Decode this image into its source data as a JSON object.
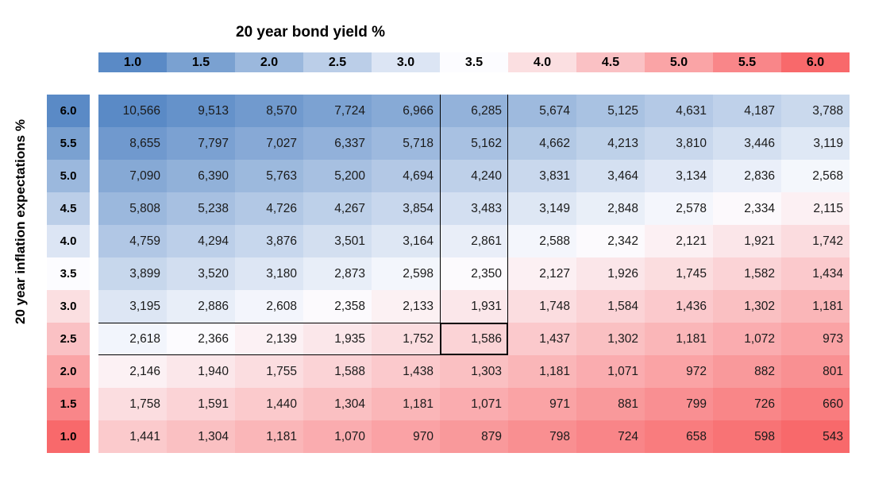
{
  "title": "20 year bond yield %",
  "y_axis_label": "20 year inflation expectations %",
  "chart_data": {
    "type": "heatmap",
    "title": "20 year bond yield %",
    "xlabel": "20 year bond yield %",
    "ylabel": "20 year inflation expectations %",
    "columns": [
      "1.0",
      "1.5",
      "2.0",
      "2.5",
      "3.0",
      "3.5",
      "4.0",
      "4.5",
      "5.0",
      "5.5",
      "6.0"
    ],
    "rows": [
      "6.0",
      "5.5",
      "5.0",
      "4.5",
      "4.0",
      "3.5",
      "3.0",
      "2.5",
      "2.0",
      "1.5",
      "1.0"
    ],
    "values": [
      [
        10566,
        9513,
        8570,
        7724,
        6966,
        6285,
        5674,
        5125,
        4631,
        4187,
        3788
      ],
      [
        8655,
        7797,
        7027,
        6337,
        5718,
        5162,
        4662,
        4213,
        3810,
        3446,
        3119
      ],
      [
        7090,
        6390,
        5763,
        5200,
        4694,
        4240,
        3831,
        3464,
        3134,
        2836,
        2568
      ],
      [
        5808,
        5238,
        4726,
        4267,
        3854,
        3483,
        3149,
        2848,
        2578,
        2334,
        2115
      ],
      [
        4759,
        4294,
        3876,
        3501,
        3164,
        2861,
        2588,
        2342,
        2121,
        1921,
        1742
      ],
      [
        3899,
        3520,
        3180,
        2873,
        2598,
        2350,
        2127,
        1926,
        1745,
        1582,
        1434
      ],
      [
        3195,
        2886,
        2608,
        2358,
        2133,
        1931,
        1748,
        1584,
        1436,
        1302,
        1181
      ],
      [
        2618,
        2366,
        2139,
        1935,
        1752,
        1586,
        1437,
        1302,
        1181,
        1072,
        973
      ],
      [
        2146,
        1940,
        1755,
        1588,
        1438,
        1303,
        1181,
        1071,
        972,
        882,
        801
      ],
      [
        1758,
        1591,
        1440,
        1304,
        1181,
        1071,
        971,
        881,
        799,
        726,
        660
      ],
      [
        1441,
        1304,
        1181,
        1070,
        970,
        879,
        798,
        724,
        658,
        598,
        543
      ]
    ],
    "highlight": {
      "column": "3.5",
      "row": "2.5",
      "value": "1,586"
    },
    "colors": {
      "min_red": "#F8696B",
      "mid_white": "#FCFCFF",
      "max_blue": "#5A8AC6"
    },
    "color_scale_note": "3-color scale: low values red, geometric midpoint white, high values blue; headers linear blue-to-red with white at 3.5",
    "legend_position": "none",
    "grid": false
  }
}
